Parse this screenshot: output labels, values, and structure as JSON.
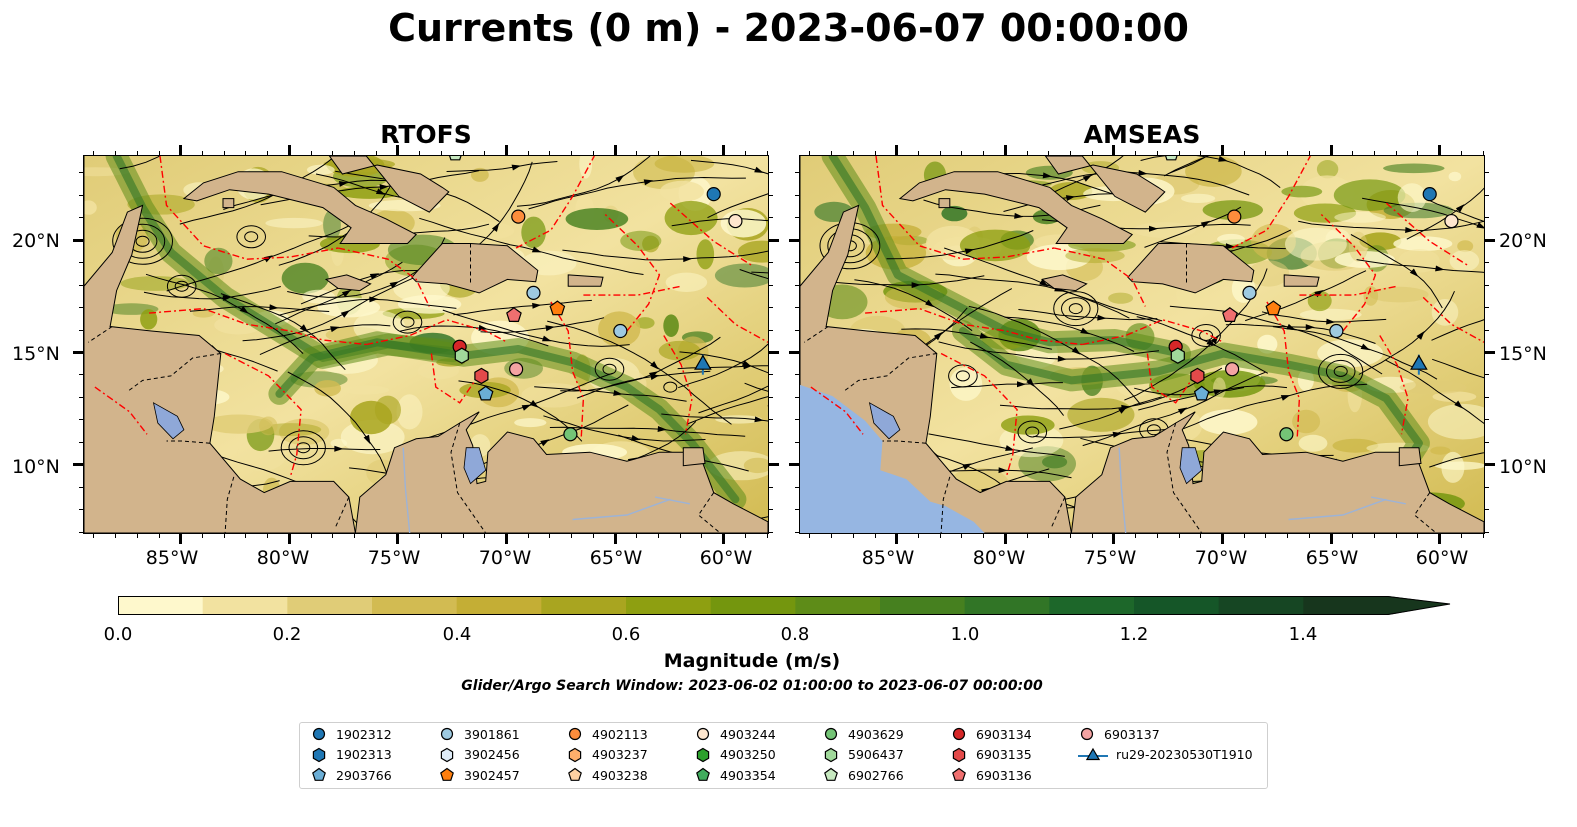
{
  "title": "Currents (0 m) - 2023-06-07 00:00:00",
  "panels": [
    {
      "name": "RTOFS"
    },
    {
      "name": "AMSEAS"
    }
  ],
  "map_extent": {
    "lon_min": -89.5,
    "lon_max": -58.0,
    "lat_min": 7.0,
    "lat_max": 23.8
  },
  "lat_ticks": [
    "20°N",
    "15°N",
    "10°N"
  ],
  "lon_ticks": [
    "85°W",
    "80°W",
    "75°W",
    "70°W",
    "65°W",
    "60°W"
  ],
  "colors": {
    "land": "#D2B48C",
    "ocean_outside": "#96B6E2",
    "eez_line": "#FF0000",
    "streamline": "#000000"
  },
  "colorbar": {
    "label": "Magnitude (m/s)",
    "ticks": [
      "0.0",
      "0.2",
      "0.4",
      "0.6",
      "0.8",
      "1.0",
      "1.2",
      "1.4"
    ],
    "min": 0.0,
    "max": 1.5,
    "step": 0.1,
    "extend": "max",
    "colors": [
      "#FEF8CC",
      "#F2E2A0",
      "#E0CC77",
      "#D2BB52",
      "#C4AE35",
      "#A9A520",
      "#8E9F11",
      "#74960E",
      "#5E8C18",
      "#46801F",
      "#317526",
      "#1D672A",
      "#155628",
      "#164623",
      "#17361D"
    ]
  },
  "search_window_text": "Glider/Argo Search Window: 2023-06-02 01:00:00 to 2023-06-07 00:00:00",
  "legend": [
    {
      "id": "1902312",
      "marker": "circle",
      "color": "#1F77B4"
    },
    {
      "id": "1902313",
      "marker": "hexagon",
      "color": "#1F77B4"
    },
    {
      "id": "2903766",
      "marker": "pentagon",
      "color": "#6BAED6"
    },
    {
      "id": "3901861",
      "marker": "circle",
      "color": "#9ECAE1"
    },
    {
      "id": "3902456",
      "marker": "hexagon",
      "color": "#DEEBF7"
    },
    {
      "id": "3902457",
      "marker": "pentagon",
      "color": "#FF7F0E"
    },
    {
      "id": "4902113",
      "marker": "circle",
      "color": "#FD8D3C"
    },
    {
      "id": "4903237",
      "marker": "hexagon",
      "color": "#FDAE6B"
    },
    {
      "id": "4903238",
      "marker": "pentagon",
      "color": "#FDD0A2"
    },
    {
      "id": "4903244",
      "marker": "circle",
      "color": "#FEE6CE"
    },
    {
      "id": "4903250",
      "marker": "hexagon",
      "color": "#2CA02C"
    },
    {
      "id": "4903354",
      "marker": "pentagon",
      "color": "#41AB5D"
    },
    {
      "id": "4903629",
      "marker": "circle",
      "color": "#74C476"
    },
    {
      "id": "5906437",
      "marker": "hexagon",
      "color": "#A1D99B"
    },
    {
      "id": "6902766",
      "marker": "pentagon",
      "color": "#C7E9C0"
    },
    {
      "id": "6903134",
      "marker": "circle",
      "color": "#D62728"
    },
    {
      "id": "6903135",
      "marker": "hexagon",
      "color": "#E34A4A"
    },
    {
      "id": "6903136",
      "marker": "pentagon",
      "color": "#EF6F6F"
    },
    {
      "id": "6903137",
      "marker": "circle",
      "color": "#F4A3A3"
    },
    {
      "id": "ru29-20230530T1910",
      "marker": "triangle",
      "color": "#1F77B4"
    }
  ],
  "observations": [
    {
      "id": "1902312",
      "lon": -60.5,
      "lat": 22.1
    },
    {
      "id": "4903244",
      "lon": -59.5,
      "lat": 20.9
    },
    {
      "id": "4902113",
      "lon": -69.5,
      "lat": 21.1
    },
    {
      "id": "3901861",
      "lon": -68.8,
      "lat": 17.7
    },
    {
      "id": "3902457",
      "lon": -67.7,
      "lat": 17.0
    },
    {
      "id": "6903136",
      "lon": -69.7,
      "lat": 16.7
    },
    {
      "id": "3901861",
      "lon": -64.8,
      "lat": 16.0
    },
    {
      "id": "6903134",
      "lon": -72.2,
      "lat": 15.3
    },
    {
      "id": "5906437",
      "lon": -72.1,
      "lat": 14.9
    },
    {
      "id": "6903137",
      "lon": -69.6,
      "lat": 14.3
    },
    {
      "id": "6903135",
      "lon": -71.2,
      "lat": 14.0
    },
    {
      "id": "2903766",
      "lon": -71.0,
      "lat": 13.2
    },
    {
      "id": "4903629",
      "lon": -67.1,
      "lat": 11.4
    },
    {
      "id": "6902766",
      "lon": -72.4,
      "lat": 23.9
    },
    {
      "id": "ru29-20230530T1910",
      "lon": -61.0,
      "lat": 14.5
    }
  ]
}
